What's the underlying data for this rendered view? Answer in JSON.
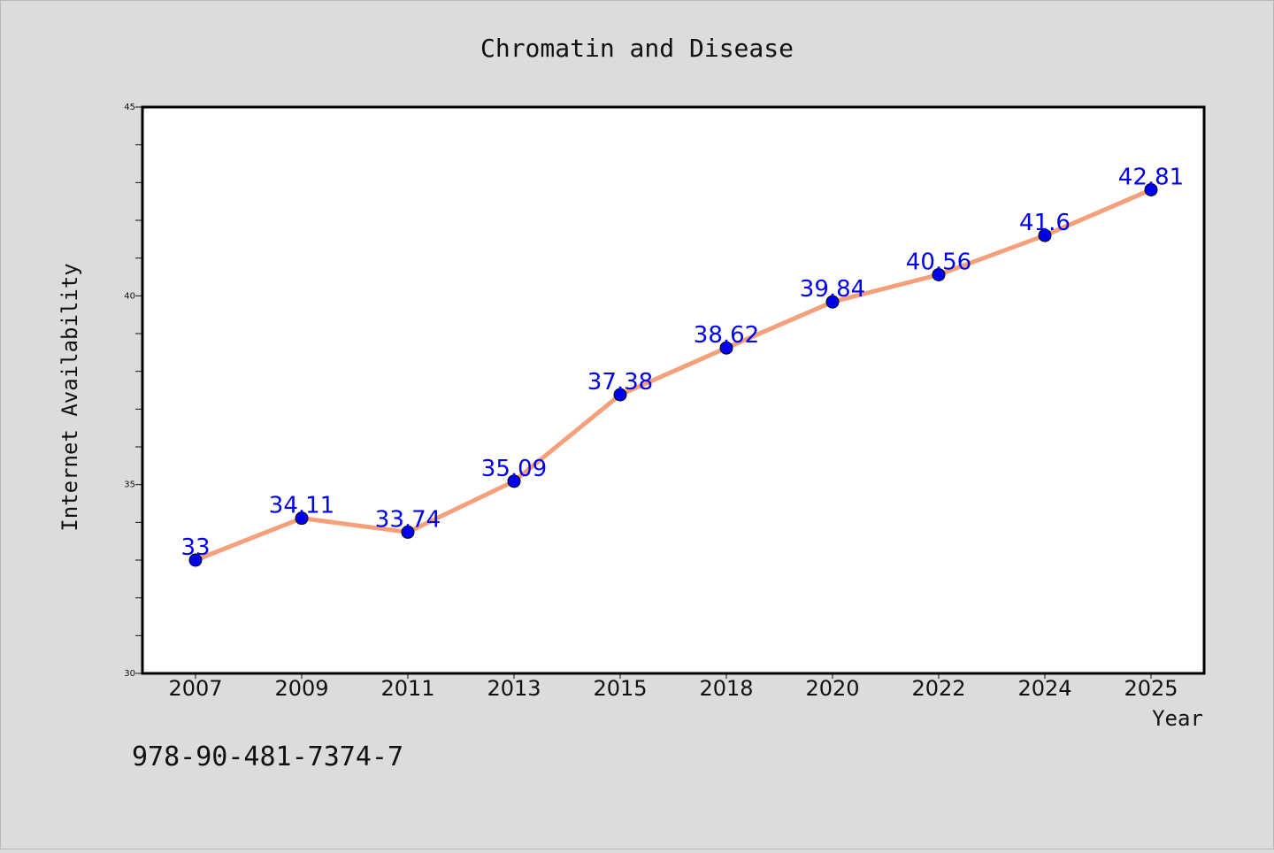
{
  "chart_data": {
    "type": "line",
    "title": "Chromatin and Disease",
    "xlabel": "Year",
    "ylabel": "Internet Availability",
    "categories": [
      "2007",
      "2009",
      "2011",
      "2013",
      "2015",
      "2018",
      "2020",
      "2022",
      "2024",
      "2025"
    ],
    "values": [
      33,
      34.11,
      33.74,
      35.09,
      37.38,
      38.62,
      39.84,
      40.56,
      41.6,
      42.81
    ],
    "data_labels": [
      "33",
      "34.11",
      "33.74",
      "35.09",
      "37.38",
      "38.62",
      "39.84",
      "40.56",
      "41.6",
      "42.81"
    ],
    "ylim": [
      30,
      45
    ],
    "yticks": [
      "30",
      "35",
      "40",
      "45"
    ],
    "grid": false,
    "legend": "none",
    "line_color": "#f5a07a",
    "marker_color": "#0000ee",
    "label_color": "#0000ee"
  },
  "footer_text": "978-90-481-7374-7"
}
